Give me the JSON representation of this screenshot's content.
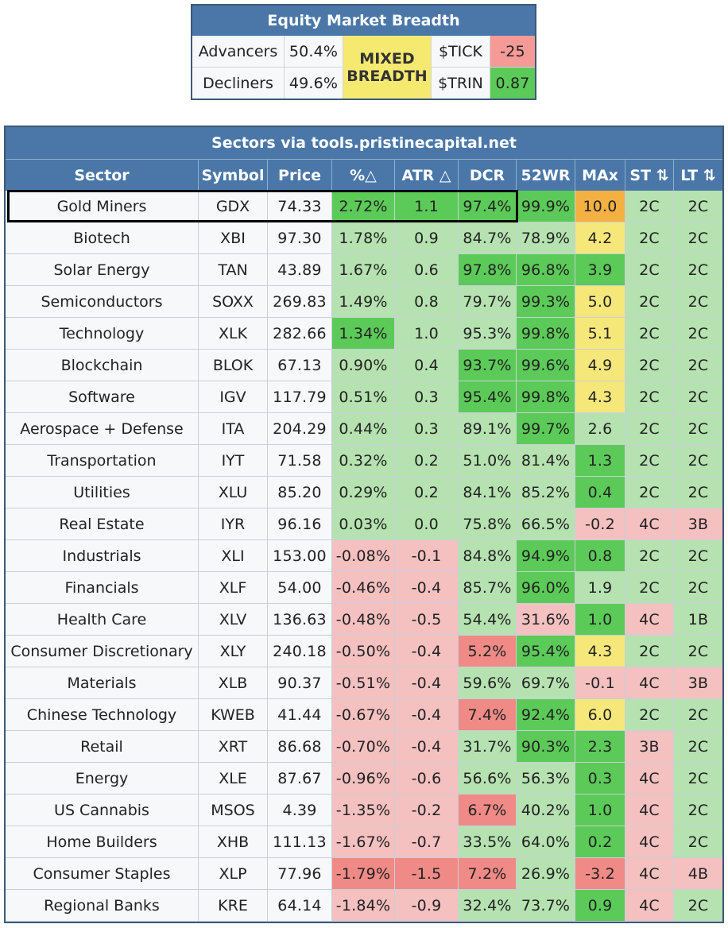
{
  "breadth": {
    "title": "Equity Market Breadth",
    "advancers_label": "Advancers",
    "advancers_value": "50.4%",
    "decliners_label": "Decliners",
    "decliners_value": "49.6%",
    "status_line1": "MIXED",
    "status_line2": "BREADTH",
    "tick_label": "$TICK",
    "tick_value": "-25",
    "trin_label": "$TRIN",
    "trin_value": "0.87"
  },
  "sectors": {
    "title": "Sectors via tools.pristinecapital.net",
    "columns": [
      "Sector",
      "Symbol",
      "Price",
      "%△",
      "ATR △",
      "DCR",
      "52WR",
      "MAx",
      "ST ⇅",
      "LT ⇅"
    ],
    "rows": [
      [
        "Gold Miners",
        "GDX",
        "74.33",
        "2.72%",
        "1.1",
        "97.4%",
        "99.9%",
        "10.0",
        "2C",
        "2C"
      ],
      [
        "Biotech",
        "XBI",
        "97.30",
        "1.78%",
        "0.9",
        "84.7%",
        "78.9%",
        "4.2",
        "2C",
        "2C"
      ],
      [
        "Solar Energy",
        "TAN",
        "43.89",
        "1.67%",
        "0.6",
        "97.8%",
        "96.8%",
        "3.9",
        "2C",
        "2C"
      ],
      [
        "Semiconductors",
        "SOXX",
        "269.83",
        "1.49%",
        "0.8",
        "79.7%",
        "99.3%",
        "5.0",
        "2C",
        "2C"
      ],
      [
        "Technology",
        "XLK",
        "282.66",
        "1.34%",
        "1.0",
        "95.3%",
        "99.8%",
        "5.1",
        "2C",
        "2C"
      ],
      [
        "Blockchain",
        "BLOK",
        "67.13",
        "0.90%",
        "0.4",
        "93.7%",
        "99.6%",
        "4.9",
        "2C",
        "2C"
      ],
      [
        "Software",
        "IGV",
        "117.79",
        "0.51%",
        "0.3",
        "95.4%",
        "99.8%",
        "4.3",
        "2C",
        "2C"
      ],
      [
        "Aerospace + Defense",
        "ITA",
        "204.29",
        "0.44%",
        "0.3",
        "89.1%",
        "99.7%",
        "2.6",
        "2C",
        "2C"
      ],
      [
        "Transportation",
        "IYT",
        "71.58",
        "0.32%",
        "0.2",
        "51.0%",
        "81.4%",
        "1.3",
        "2C",
        "2C"
      ],
      [
        "Utilities",
        "XLU",
        "85.20",
        "0.29%",
        "0.2",
        "84.1%",
        "85.2%",
        "0.4",
        "2C",
        "2C"
      ],
      [
        "Real Estate",
        "IYR",
        "96.16",
        "0.03%",
        "0.0",
        "75.8%",
        "66.5%",
        "-0.2",
        "4C",
        "3B"
      ],
      [
        "Industrials",
        "XLI",
        "153.00",
        "-0.08%",
        "-0.1",
        "84.8%",
        "94.9%",
        "0.8",
        "2C",
        "2C"
      ],
      [
        "Financials",
        "XLF",
        "54.00",
        "-0.46%",
        "-0.4",
        "85.7%",
        "96.0%",
        "1.9",
        "2C",
        "2C"
      ],
      [
        "Health Care",
        "XLV",
        "136.63",
        "-0.48%",
        "-0.5",
        "54.4%",
        "31.6%",
        "1.0",
        "4C",
        "1B"
      ],
      [
        "Consumer Discretionary",
        "XLY",
        "240.18",
        "-0.50%",
        "-0.4",
        "5.2%",
        "95.4%",
        "4.3",
        "2C",
        "2C"
      ],
      [
        "Materials",
        "XLB",
        "90.37",
        "-0.51%",
        "-0.4",
        "59.6%",
        "69.7%",
        "-0.1",
        "4C",
        "3B"
      ],
      [
        "Chinese Technology",
        "KWEB",
        "41.44",
        "-0.67%",
        "-0.4",
        "7.4%",
        "92.4%",
        "6.0",
        "2C",
        "2C"
      ],
      [
        "Retail",
        "XRT",
        "86.68",
        "-0.70%",
        "-0.4",
        "31.7%",
        "90.3%",
        "2.3",
        "3B",
        "2C"
      ],
      [
        "Energy",
        "XLE",
        "87.67",
        "-0.96%",
        "-0.6",
        "56.6%",
        "56.3%",
        "0.3",
        "4C",
        "2C"
      ],
      [
        "US Cannabis",
        "MSOS",
        "4.39",
        "-1.35%",
        "-0.2",
        "6.7%",
        "40.2%",
        "1.0",
        "4C",
        "2C"
      ],
      [
        "Home Builders",
        "XHB",
        "111.13",
        "-1.67%",
        "-0.7",
        "33.5%",
        "64.0%",
        "0.2",
        "4C",
        "2C"
      ],
      [
        "Consumer Staples",
        "XLP",
        "77.96",
        "-1.79%",
        "-1.5",
        "7.2%",
        "26.9%",
        "-3.2",
        "4C",
        "4B"
      ],
      [
        "Regional Banks",
        "KRE",
        "64.14",
        "-1.84%",
        "-0.9",
        "32.4%",
        "73.7%",
        "0.9",
        "4C",
        "2C"
      ]
    ],
    "shading": [
      [
        "w",
        "w",
        "w",
        "G",
        "G",
        "G",
        "G",
        "O",
        "L",
        "L"
      ],
      [
        "w",
        "w",
        "w",
        "L",
        "L",
        "L",
        "L",
        "Y",
        "L",
        "L"
      ],
      [
        "w",
        "w",
        "w",
        "L",
        "L",
        "G",
        "G",
        "G",
        "L",
        "L"
      ],
      [
        "w",
        "w",
        "w",
        "L",
        "L",
        "L",
        "G",
        "Y",
        "L",
        "L"
      ],
      [
        "w",
        "w",
        "w",
        "G",
        "L",
        "L",
        "G",
        "Y",
        "L",
        "L"
      ],
      [
        "w",
        "w",
        "w",
        "L",
        "L",
        "G",
        "G",
        "Y",
        "L",
        "L"
      ],
      [
        "w",
        "w",
        "w",
        "L",
        "L",
        "G",
        "G",
        "Y",
        "L",
        "L"
      ],
      [
        "w",
        "w",
        "w",
        "L",
        "L",
        "L",
        "G",
        "L",
        "L",
        "L"
      ],
      [
        "w",
        "w",
        "w",
        "L",
        "L",
        "L",
        "L",
        "G",
        "L",
        "L"
      ],
      [
        "w",
        "w",
        "w",
        "L",
        "L",
        "L",
        "L",
        "G",
        "L",
        "L"
      ],
      [
        "w",
        "w",
        "w",
        "L",
        "L",
        "L",
        "L",
        "P",
        "P",
        "P"
      ],
      [
        "w",
        "w",
        "w",
        "P",
        "P",
        "L",
        "G",
        "G",
        "L",
        "L"
      ],
      [
        "w",
        "w",
        "w",
        "P",
        "P",
        "L",
        "G",
        "L",
        "L",
        "L"
      ],
      [
        "w",
        "w",
        "w",
        "P",
        "P",
        "L",
        "P",
        "G",
        "P",
        "L"
      ],
      [
        "w",
        "w",
        "w",
        "P",
        "P",
        "R",
        "G",
        "Y",
        "L",
        "L"
      ],
      [
        "w",
        "w",
        "w",
        "P",
        "P",
        "L",
        "L",
        "P",
        "P",
        "P"
      ],
      [
        "w",
        "w",
        "w",
        "P",
        "P",
        "R",
        "G",
        "Y",
        "L",
        "L"
      ],
      [
        "w",
        "w",
        "w",
        "P",
        "P",
        "L",
        "G",
        "G",
        "P",
        "L"
      ],
      [
        "w",
        "w",
        "w",
        "P",
        "P",
        "L",
        "L",
        "G",
        "P",
        "L"
      ],
      [
        "w",
        "w",
        "w",
        "P",
        "P",
        "R",
        "L",
        "G",
        "P",
        "L"
      ],
      [
        "w",
        "w",
        "w",
        "P",
        "P",
        "L",
        "L",
        "G",
        "P",
        "L"
      ],
      [
        "w",
        "w",
        "w",
        "R",
        "R",
        "R",
        "L",
        "R",
        "P",
        "P"
      ],
      [
        "w",
        "w",
        "w",
        "P",
        "P",
        "L",
        "L",
        "G",
        "P",
        "L"
      ]
    ]
  },
  "colors": {
    "header": "#4a77a8",
    "w": "#f7f8fa",
    "L": "#b5e2b0",
    "G": "#5cca58",
    "P": "#f5c0c0",
    "R": "#f08a86",
    "Y": "#f5e77a",
    "O": "#f5b042",
    "tick_negative": "#f59a96",
    "trin_positive": "#5cca58",
    "mixed": "#f6e970"
  }
}
